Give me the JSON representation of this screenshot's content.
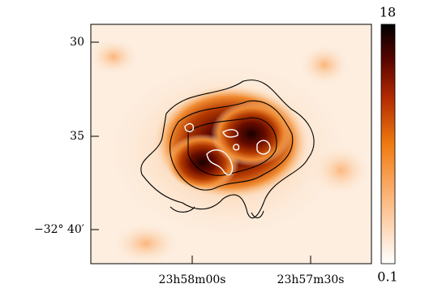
{
  "y_axis": {
    "ticks": [
      "30",
      "35",
      "−32° 40′"
    ]
  },
  "x_axis": {
    "ticks": [
      "23h58m00s",
      "23h57m30s"
    ]
  },
  "colorbar": {
    "max": "18",
    "min": "0.1"
  }
}
